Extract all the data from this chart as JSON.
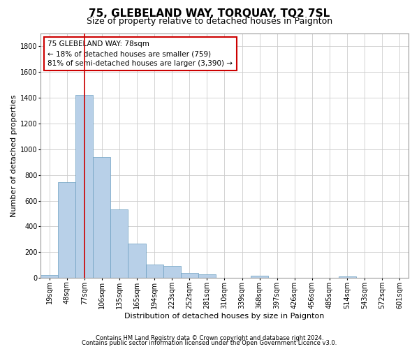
{
  "title": "75, GLEBELAND WAY, TORQUAY, TQ2 7SL",
  "subtitle": "Size of property relative to detached houses in Paignton",
  "xlabel": "Distribution of detached houses by size in Paignton",
  "ylabel": "Number of detached properties",
  "footer1": "Contains HM Land Registry data © Crown copyright and database right 2024.",
  "footer2": "Contains public sector information licensed under the Open Government Licence v3.0.",
  "annotation_title": "75 GLEBELAND WAY: 78sqm",
  "annotation_line1": "← 18% of detached houses are smaller (759)",
  "annotation_line2": "81% of semi-detached houses are larger (3,390) →",
  "bar_color": "#b8d0e8",
  "bar_edge_color": "#6a9ec0",
  "vline_color": "#cc0000",
  "annotation_box_edge_color": "#cc0000",
  "grid_color": "#cccccc",
  "background_color": "#ffffff",
  "categories": [
    "19sqm",
    "48sqm",
    "77sqm",
    "106sqm",
    "135sqm",
    "165sqm",
    "194sqm",
    "223sqm",
    "252sqm",
    "281sqm",
    "310sqm",
    "339sqm",
    "368sqm",
    "397sqm",
    "426sqm",
    "456sqm",
    "485sqm",
    "514sqm",
    "543sqm",
    "572sqm",
    "601sqm"
  ],
  "values": [
    22,
    742,
    1422,
    938,
    532,
    265,
    105,
    93,
    40,
    27,
    0,
    0,
    17,
    0,
    0,
    0,
    0,
    14,
    0,
    0,
    0
  ],
  "ylim": [
    0,
    1900
  ],
  "yticks": [
    0,
    200,
    400,
    600,
    800,
    1000,
    1200,
    1400,
    1600,
    1800
  ],
  "title_fontsize": 11,
  "subtitle_fontsize": 9,
  "ylabel_fontsize": 8,
  "xlabel_fontsize": 8,
  "tick_fontsize": 7,
  "annotation_fontsize": 7.5,
  "footer_fontsize": 6
}
